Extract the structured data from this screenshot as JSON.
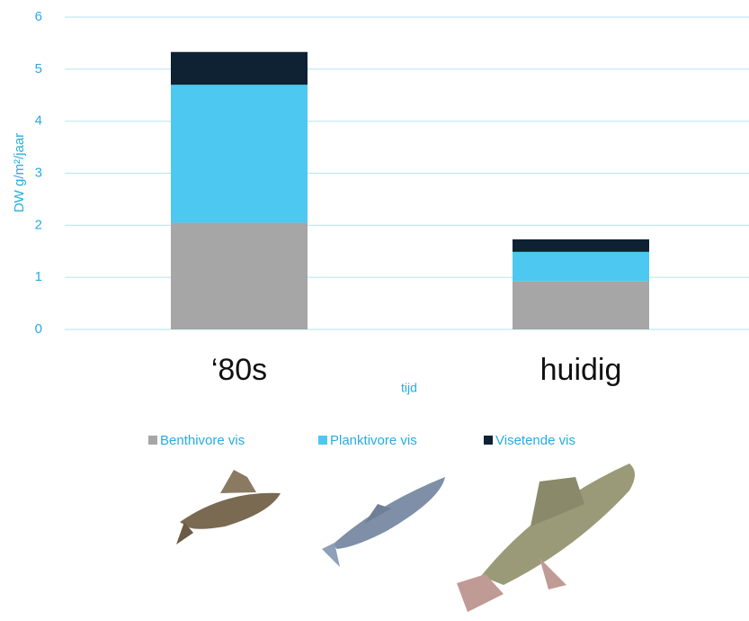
{
  "chart_data": {
    "type": "bar",
    "stacked": true,
    "y_label": "DW g/m²/jaar",
    "x_label": "tijd",
    "categories": [
      "‘80s",
      "huidig"
    ],
    "series": [
      {
        "name": "Benthivore vis",
        "color": "#a6a6a6",
        "values": [
          2.05,
          0.93
        ]
      },
      {
        "name": "Planktivore vis",
        "color": "#4dc8f0",
        "values": [
          2.65,
          0.56
        ]
      },
      {
        "name": "Visetende vis",
        "color": "#0e2234",
        "values": [
          0.63,
          0.24
        ]
      }
    ],
    "ylim": [
      0,
      6
    ],
    "yticks": [
      0,
      1,
      2,
      3,
      4,
      5,
      6
    ],
    "grid": true,
    "legend_position": "bottom"
  }
}
